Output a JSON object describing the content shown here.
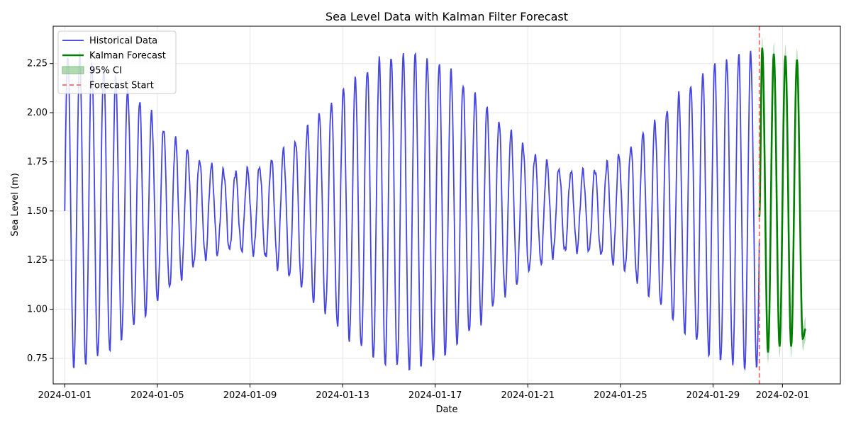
{
  "chart_data": {
    "type": "line",
    "title": "Sea Level Data with Kalman Filter Forecast",
    "xlabel": "Date",
    "ylabel": "Sea Level (m)",
    "xlim": [
      "2023-12-31T12:00",
      "2024-02-03T12:00"
    ],
    "ylim": [
      0.62,
      2.44
    ],
    "x_ticks": [
      "2024-01-01",
      "2024-01-05",
      "2024-01-09",
      "2024-01-13",
      "2024-01-17",
      "2024-01-21",
      "2024-01-25",
      "2024-01-29",
      "2024-02-01"
    ],
    "y_ticks": [
      "0.75",
      "1.00",
      "1.25",
      "1.50",
      "1.75",
      "2.00",
      "2.25"
    ],
    "grid": true,
    "legend_position": "top-left",
    "colors": {
      "historical": "#3b3bdf",
      "forecast": "#008000",
      "ci": "#7fbf7f",
      "forecast_start": "#ff6666"
    },
    "series": [
      {
        "name": "Historical Data",
        "kind": "line",
        "description": "Semi-diurnal tidal signal around 1.5 m with a spring-neap envelope; amplitude ~0.8 m at spring tides and ~0.2 m at neap tides, 6-hourly-like sampling from 2024-01-01 to 2024-01-31",
        "start": "2024-01-01T00:00",
        "end": "2024-01-31T00:00",
        "mean": 1.5,
        "tidal_period_hours": 12.42,
        "envelope_period_days": 14.77,
        "amplitude_max": 0.8,
        "amplitude_min": 0.2,
        "key_points": [
          {
            "x": "2024-01-01T00:00",
            "y": 1.5
          },
          {
            "x": "2024-01-01T03:00",
            "y": 2.28
          },
          {
            "x": "2024-01-01T09:00",
            "y": 0.72
          },
          {
            "x": "2024-01-08T00:00",
            "y": 1.72
          },
          {
            "x": "2024-01-08T06:00",
            "y": 1.32
          },
          {
            "x": "2024-01-15T03:00",
            "y": 2.31
          },
          {
            "x": "2024-01-15T09:00",
            "y": 0.7
          },
          {
            "x": "2024-01-23T00:00",
            "y": 1.72
          },
          {
            "x": "2024-01-23T06:00",
            "y": 1.3
          },
          {
            "x": "2024-01-30T03:00",
            "y": 2.34
          },
          {
            "x": "2024-01-30T15:00",
            "y": 0.76
          },
          {
            "x": "2024-01-31T00:00",
            "y": 1.05
          }
        ]
      },
      {
        "name": "Kalman Forecast",
        "kind": "line",
        "start": "2024-01-31T00:00",
        "end": "2024-02-02T00:00",
        "key_points": [
          {
            "x": "2024-01-31T00:00",
            "y": 1.47
          },
          {
            "x": "2024-01-31T03:00",
            "y": 2.33
          },
          {
            "x": "2024-01-31T09:00",
            "y": 0.78
          },
          {
            "x": "2024-01-31T15:00",
            "y": 2.3
          },
          {
            "x": "2024-01-31T21:00",
            "y": 0.81
          },
          {
            "x": "2024-02-01T03:00",
            "y": 2.29
          },
          {
            "x": "2024-02-01T09:00",
            "y": 0.81
          },
          {
            "x": "2024-02-01T15:00",
            "y": 2.27
          },
          {
            "x": "2024-02-01T21:00",
            "y": 0.85
          },
          {
            "x": "2024-02-02T00:00",
            "y": 0.9
          }
        ]
      },
      {
        "name": "95% CI",
        "kind": "band",
        "half_width": 0.06
      },
      {
        "name": "Forecast Start",
        "kind": "vline",
        "x": "2024-01-31T00:00"
      }
    ]
  }
}
